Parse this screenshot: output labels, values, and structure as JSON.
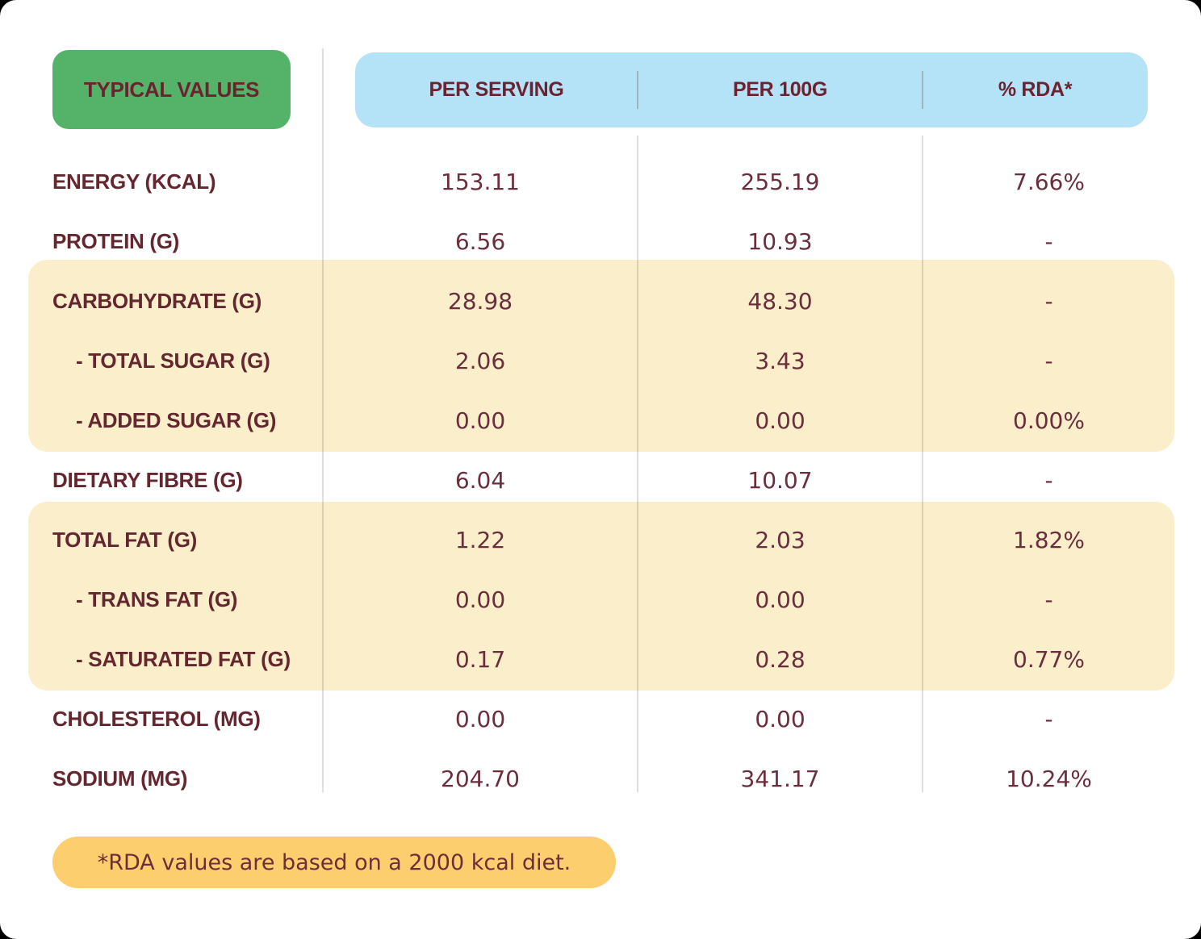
{
  "title_box": {
    "label": "TYPICAL VALUES"
  },
  "header": {
    "columns": [
      "PER SERVING",
      "PER 100G",
      "% RDA*"
    ]
  },
  "rows": [
    {
      "label": "ENERGY (KCAL)",
      "per_serving": "153.11",
      "per_100g": "255.19",
      "rda": "7.66%"
    },
    {
      "label": "PROTEIN (G)",
      "per_serving": "6.56",
      "per_100g": "10.93",
      "rda": "-"
    },
    {
      "label": "CARBOHYDRATE (G)",
      "per_serving": "28.98",
      "per_100g": "48.30",
      "rda": "-"
    },
    {
      "label": "- TOTAL SUGAR (G)",
      "per_serving": "2.06",
      "per_100g": "3.43",
      "rda": "-"
    },
    {
      "label": "- ADDED SUGAR (G)",
      "per_serving": "0.00",
      "per_100g": "0.00",
      "rda": "0.00%"
    },
    {
      "label": "DIETARY FIBRE (G)",
      "per_serving": "6.04",
      "per_100g": "10.07",
      "rda": "-"
    },
    {
      "label": "TOTAL FAT (G)",
      "per_serving": "1.22",
      "per_100g": "2.03",
      "rda": "1.82%"
    },
    {
      "label": "- TRANS FAT (G)",
      "per_serving": "0.00",
      "per_100g": "0.00",
      "rda": "-"
    },
    {
      "label": "- SATURATED FAT (G)",
      "per_serving": "0.17",
      "per_100g": "0.28",
      "rda": "0.77%"
    },
    {
      "label": "CHOLESTEROL (MG)",
      "per_serving": "0.00",
      "per_100g": "0.00",
      "rda": "-"
    },
    {
      "label": "SODIUM (MG)",
      "per_serving": "204.70",
      "per_100g": "341.17",
      "rda": "10.24%"
    }
  ],
  "footnote": "*RDA values are based on a 2000 kcal diet.",
  "colors": {
    "title_box_green": "#54b369",
    "header_blue": "#b4e2f6",
    "highlight_band_cream": "#fbeecb",
    "footnote_yellow": "#fcce6e",
    "text_maroon": "#64262f"
  }
}
